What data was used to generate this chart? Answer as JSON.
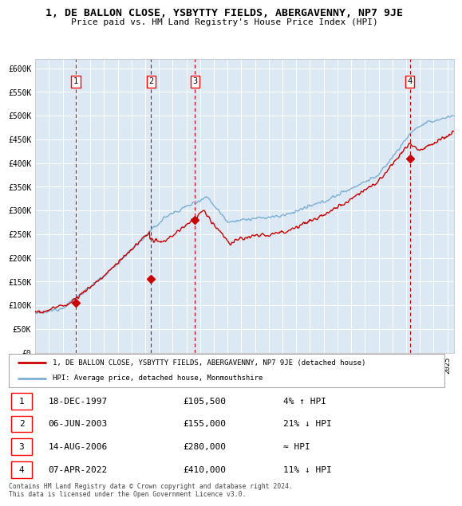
{
  "title": "1, DE BALLON CLOSE, YSBYTTY FIELDS, ABERGAVENNY, NP7 9JE",
  "subtitle": "Price paid vs. HM Land Registry's House Price Index (HPI)",
  "ylim": [
    0,
    620000
  ],
  "yticks": [
    0,
    50000,
    100000,
    150000,
    200000,
    250000,
    300000,
    350000,
    400000,
    450000,
    500000,
    550000,
    600000
  ],
  "ytick_labels": [
    "£0",
    "£50K",
    "£100K",
    "£150K",
    "£200K",
    "£250K",
    "£300K",
    "£350K",
    "£400K",
    "£450K",
    "£500K",
    "£550K",
    "£600K"
  ],
  "hpi_color": "#7bafd4",
  "price_color": "#cc0000",
  "vline_color": "#cc0000",
  "background_color": "#dce9f5",
  "grid_color": "#ffffff",
  "sale_points": [
    {
      "date_num": 1997.96,
      "price": 105500,
      "label": "1"
    },
    {
      "date_num": 2003.43,
      "price": 155000,
      "label": "2"
    },
    {
      "date_num": 2006.62,
      "price": 280000,
      "label": "3"
    },
    {
      "date_num": 2022.27,
      "price": 410000,
      "label": "4"
    }
  ],
  "legend_property_label": "1, DE BALLON CLOSE, YSBYTTY FIELDS, ABERGAVENNY, NP7 9JE (detached house)",
  "legend_hpi_label": "HPI: Average price, detached house, Monmouthshire",
  "table_rows": [
    {
      "num": "1",
      "date": "18-DEC-1997",
      "price": "£105,500",
      "rel": "4% ↑ HPI"
    },
    {
      "num": "2",
      "date": "06-JUN-2003",
      "price": "£155,000",
      "rel": "21% ↓ HPI"
    },
    {
      "num": "3",
      "date": "14-AUG-2006",
      "price": "£280,000",
      "rel": "≈ HPI"
    },
    {
      "num": "4",
      "date": "07-APR-2022",
      "price": "£410,000",
      "rel": "11% ↓ HPI"
    }
  ],
  "footnote": "Contains HM Land Registry data © Crown copyright and database right 2024.\nThis data is licensed under the Open Government Licence v3.0.",
  "xmin": 1995.0,
  "xmax": 2025.5
}
